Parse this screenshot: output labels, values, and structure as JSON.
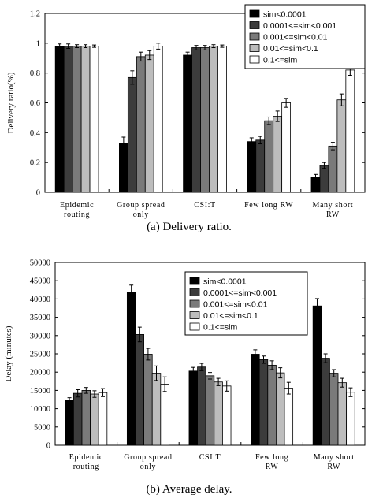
{
  "colors": {
    "series": [
      "#000000",
      "#3c3c3c",
      "#7a7a7a",
      "#bdbdbd",
      "#ffffff"
    ],
    "axis": "#000000",
    "background": "#ffffff"
  },
  "chart_data": [
    {
      "type": "bar",
      "title": "",
      "caption": "(a) Delivery ratio.",
      "xlabel": "",
      "ylabel": "Delivery ratio(%)",
      "ylim": [
        0,
        1.2
      ],
      "yticks": [
        "0",
        "0.2",
        "0.4",
        "0.6",
        "0.8",
        "1",
        "1.2"
      ],
      "grid": false,
      "legend_position": "top-right",
      "categories": [
        [
          "Epidemic",
          "routing"
        ],
        [
          "Group spread",
          "only"
        ],
        [
          "CSI:T"
        ],
        [
          "Few long RW"
        ],
        [
          "Many short",
          "RW"
        ]
      ],
      "series": [
        {
          "name": "sim<0.0001",
          "values": [
            0.98,
            0.33,
            0.92,
            0.34,
            0.1
          ],
          "errors": [
            0.015,
            0.04,
            0.02,
            0.025,
            0.02
          ]
        },
        {
          "name": "0.0001<=sim<0.001",
          "values": [
            0.98,
            0.77,
            0.97,
            0.35,
            0.18
          ],
          "errors": [
            0.015,
            0.045,
            0.015,
            0.025,
            0.02
          ]
        },
        {
          "name": "0.001<=sim<0.01",
          "values": [
            0.98,
            0.91,
            0.97,
            0.48,
            0.31
          ],
          "errors": [
            0.01,
            0.03,
            0.015,
            0.025,
            0.025
          ]
        },
        {
          "name": "0.01<=sim<0.1",
          "values": [
            0.98,
            0.92,
            0.98,
            0.51,
            0.62
          ],
          "errors": [
            0.01,
            0.03,
            0.01,
            0.035,
            0.04
          ]
        },
        {
          "name": "0.1<=sim",
          "values": [
            0.98,
            0.98,
            0.98,
            0.6,
            0.82
          ],
          "errors": [
            0.008,
            0.02,
            0.008,
            0.03,
            0.035
          ]
        }
      ]
    },
    {
      "type": "bar",
      "title": "",
      "caption": "(b) Average delay.",
      "xlabel": "",
      "ylabel": "Delay (minutes)",
      "ylim": [
        0,
        50000
      ],
      "yticks": [
        "0",
        "5000",
        "10000",
        "15000",
        "20000",
        "25000",
        "30000",
        "35000",
        "40000",
        "45000",
        "50000"
      ],
      "grid": false,
      "legend_position": "top-center",
      "categories": [
        [
          "Epidemic",
          "routing"
        ],
        [
          "Group spread",
          "only"
        ],
        [
          "CSI:T"
        ],
        [
          "Few long",
          "RW"
        ],
        [
          "Many short",
          "RW"
        ]
      ],
      "series": [
        {
          "name": "sim<0.0001",
          "values": [
            12200,
            41800,
            20300,
            24900,
            38100
          ],
          "errors": [
            800,
            2000,
            1000,
            1200,
            2000
          ]
        },
        {
          "name": "0.0001<=sim<0.001",
          "values": [
            14200,
            30300,
            21400,
            23400,
            23800
          ],
          "errors": [
            1000,
            2000,
            1000,
            1000,
            1200
          ]
        },
        {
          "name": "0.001<=sim<0.01",
          "values": [
            15000,
            24900,
            19000,
            21900,
            19700
          ],
          "errors": [
            800,
            1600,
            900,
            1200,
            1000
          ]
        },
        {
          "name": "0.01<=sim<0.1",
          "values": [
            14000,
            19700,
            17300,
            19800,
            17100
          ],
          "errors": [
            900,
            2000,
            1000,
            1400,
            1200
          ]
        },
        {
          "name": "0.1<=sim",
          "values": [
            14400,
            16700,
            16200,
            15600,
            14500
          ],
          "errors": [
            1100,
            2000,
            1400,
            1600,
            1200
          ]
        }
      ]
    }
  ]
}
